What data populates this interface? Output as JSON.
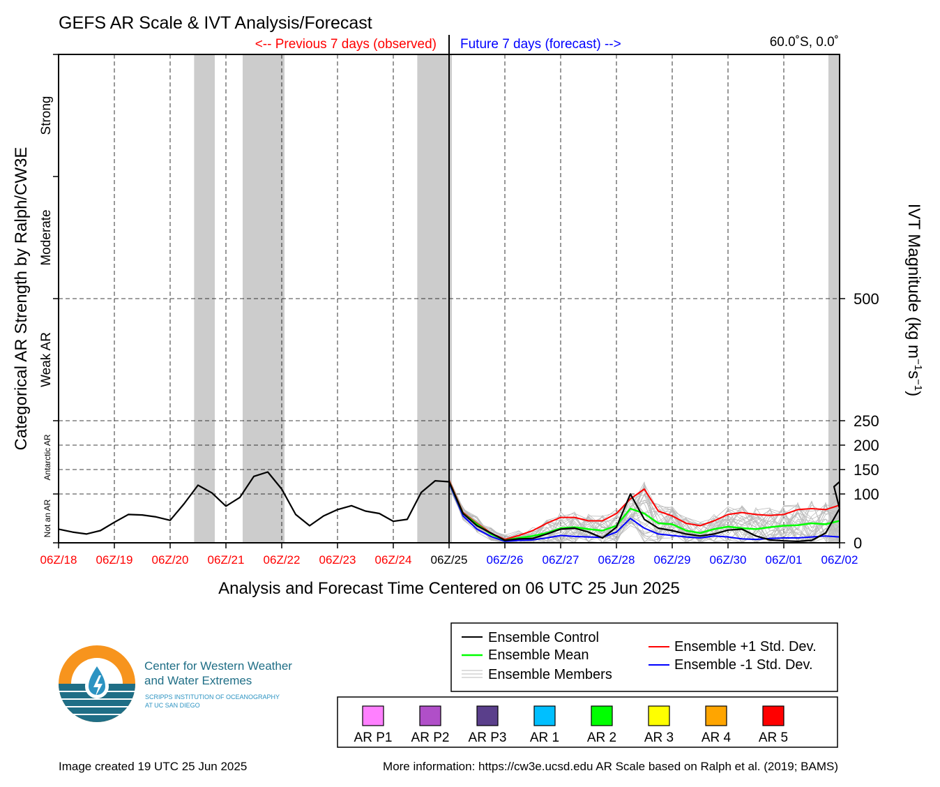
{
  "title": "GEFS AR Scale & IVT Analysis/Forecast",
  "header": {
    "previous_label": "<-- Previous 7 days (observed)",
    "future_label": "Future 7 days (forecast) -->",
    "location": "60.0˚S, 0.0˚"
  },
  "colors": {
    "observed": "#ff0000",
    "forecast": "#0000ff",
    "control": "#000000",
    "mean": "#00ff00",
    "plus_std": "#ff0000",
    "minus_std": "#0000ff",
    "members": "#bbbbbb",
    "shade": "#cccccc",
    "logo_orange": "#f7941d",
    "logo_teal": "#1f6e86"
  },
  "chart_data": {
    "type": "line",
    "xlabel": "Analysis and Forecast Time Centered on 06 UTC 25 Jun 2025",
    "ylabel_left": "Categorical AR Strength by Ralph/CW3E",
    "ylabel_right": "IVT Magnitude (kg m",
    "ylabel_right_sup1": "−1",
    "ylabel_right_mid": "s",
    "ylabel_right_sup2": "−1",
    "ylabel_right_end": ")",
    "x_ticks": [
      {
        "label": "06Z/18",
        "day": 0,
        "group": "observed"
      },
      {
        "label": "06Z/19",
        "day": 1,
        "group": "observed"
      },
      {
        "label": "06Z/20",
        "day": 2,
        "group": "observed"
      },
      {
        "label": "06Z/21",
        "day": 3,
        "group": "observed"
      },
      {
        "label": "06Z/22",
        "day": 4,
        "group": "observed"
      },
      {
        "label": "06Z/23",
        "day": 5,
        "group": "observed"
      },
      {
        "label": "06Z/24",
        "day": 6,
        "group": "observed"
      },
      {
        "label": "06Z/25",
        "day": 7,
        "group": "center"
      },
      {
        "label": "06Z/26",
        "day": 8,
        "group": "forecast"
      },
      {
        "label": "06Z/27",
        "day": 9,
        "group": "forecast"
      },
      {
        "label": "06Z/28",
        "day": 10,
        "group": "forecast"
      },
      {
        "label": "06Z/29",
        "day": 11,
        "group": "forecast"
      },
      {
        "label": "06Z/30",
        "day": 12,
        "group": "forecast"
      },
      {
        "label": "06Z/01",
        "day": 13,
        "group": "forecast"
      },
      {
        "label": "06Z/02",
        "day": 14,
        "group": "forecast"
      }
    ],
    "y_ticks": [
      0,
      100,
      150,
      200,
      250,
      500
    ],
    "y_ticks_labels": [
      "0",
      "100",
      "150",
      "200",
      "250",
      "500"
    ],
    "ylim": [
      0,
      1000
    ],
    "categories": [
      {
        "label": "Not an AR",
        "from": 0,
        "to": 100,
        "small": true
      },
      {
        "label": "Antarctic AR",
        "from": 100,
        "to": 250,
        "small": true
      },
      {
        "label": "Weak AR",
        "from": 250,
        "to": 500,
        "small": false
      },
      {
        "label": "Moderate",
        "from": 500,
        "to": 750,
        "small": false
      },
      {
        "label": "Strong",
        "from": 750,
        "to": 1000,
        "small": false
      }
    ],
    "ar_shading_days": [
      [
        2.43,
        2.8
      ],
      [
        3.3,
        4.05
      ],
      [
        6.43,
        7.05
      ],
      [
        13.8,
        14.0
      ]
    ],
    "series": [
      {
        "name": "Ensemble Control",
        "x": [
          0,
          0.25,
          0.5,
          0.75,
          1,
          1.25,
          1.5,
          1.75,
          2,
          2.25,
          2.5,
          2.75,
          3,
          3.25,
          3.5,
          3.75,
          4,
          4.25,
          4.5,
          4.75,
          5,
          5.25,
          5.5,
          5.75,
          6,
          6.25,
          6.5,
          6.75,
          7,
          7.25,
          7.5,
          7.75,
          8,
          8.25,
          8.5,
          8.75,
          9,
          9.25,
          9.5,
          9.75,
          10,
          10.25,
          10.5,
          10.75,
          11,
          11.25,
          11.5,
          11.75,
          12,
          12.25,
          12.5,
          12.75,
          13,
          13.25,
          13.5,
          13.75,
          14
        ],
        "y": [
          28,
          22,
          18,
          25,
          42,
          58,
          57,
          53,
          46,
          80,
          118,
          102,
          75,
          93,
          136,
          145,
          110,
          58,
          35,
          55,
          68,
          76,
          65,
          60,
          44,
          48,
          103,
          127,
          125,
          60,
          35,
          20,
          5,
          8,
          9,
          18,
          28,
          30,
          22,
          10,
          32,
          100,
          48,
          30,
          25,
          18,
          14,
          18,
          26,
          28,
          14,
          6,
          4,
          3,
          5,
          20,
          70
        ],
        "y_tail": [
          [
            13.9,
            115
          ],
          [
            14.0,
            125
          ]
        ]
      },
      {
        "name": "Ensemble Mean",
        "x": [
          7,
          7.25,
          7.5,
          7.75,
          8,
          8.25,
          8.5,
          8.75,
          9,
          9.25,
          9.5,
          9.75,
          10,
          10.25,
          10.5,
          10.75,
          11,
          11.25,
          11.5,
          11.75,
          12,
          12.25,
          12.5,
          12.75,
          13,
          13.25,
          13.5,
          13.75,
          14
        ],
        "y": [
          125,
          60,
          38,
          18,
          5,
          10,
          14,
          20,
          30,
          32,
          28,
          25,
          35,
          70,
          60,
          40,
          38,
          25,
          20,
          28,
          33,
          30,
          28,
          32,
          35,
          36,
          40,
          38,
          45
        ]
      },
      {
        "name": "Ensemble +1 Std. Dev.",
        "x": [
          7,
          7.25,
          7.5,
          7.75,
          8,
          8.25,
          8.5,
          8.75,
          9,
          9.25,
          9.5,
          9.75,
          10,
          10.25,
          10.5,
          10.75,
          11,
          11.25,
          11.5,
          11.75,
          12,
          12.25,
          12.5,
          12.75,
          13,
          13.25,
          13.5,
          13.75,
          14
        ],
        "y": [
          128,
          62,
          40,
          20,
          7,
          15,
          25,
          40,
          52,
          52,
          45,
          45,
          60,
          90,
          110,
          65,
          55,
          40,
          35,
          45,
          58,
          62,
          58,
          56,
          58,
          68,
          70,
          68,
          77
        ]
      },
      {
        "name": "Ensemble -1 Std. Dev.",
        "x": [
          7,
          7.25,
          7.5,
          7.75,
          8,
          8.25,
          8.5,
          8.75,
          9,
          9.25,
          9.5,
          9.75,
          10,
          10.25,
          10.5,
          10.75,
          11,
          11.25,
          11.5,
          11.75,
          12,
          12.25,
          12.5,
          12.75,
          13,
          13.25,
          13.5,
          13.75,
          14
        ],
        "y": [
          122,
          55,
          28,
          13,
          3,
          5,
          6,
          10,
          15,
          13,
          12,
          11,
          22,
          50,
          30,
          18,
          15,
          12,
          10,
          14,
          12,
          8,
          7,
          9,
          10,
          10,
          12,
          14,
          12
        ]
      }
    ]
  },
  "legend": {
    "control": "Ensemble Control",
    "mean": "Ensemble Mean",
    "members": "Ensemble Members",
    "plus": "Ensemble +1 Std. Dev.",
    "minus": "Ensemble -1 Std. Dev."
  },
  "ar_scale": [
    {
      "label": "AR P1",
      "color": "#ff80ff"
    },
    {
      "label": "AR P2",
      "color": "#b04fc8"
    },
    {
      "label": "AR P3",
      "color": "#5a3f8b"
    },
    {
      "label": "AR 1",
      "color": "#00bfff"
    },
    {
      "label": "AR 2",
      "color": "#00ff00"
    },
    {
      "label": "AR 3",
      "color": "#ffff00"
    },
    {
      "label": "AR 4",
      "color": "#ffa500"
    },
    {
      "label": "AR 5",
      "color": "#ff0000"
    }
  ],
  "logo": {
    "line1": "Center for Western Weather",
    "line2": "and Water Extremes",
    "sub1": "SCRIPPS INSTITUTION OF OCEANOGRAPHY",
    "sub2": "AT UC SAN DIEGO"
  },
  "footer": {
    "created": "Image created 19 UTC 25 Jun 2025",
    "info": "More information: https://cw3e.ucsd.edu AR Scale based on Ralph et al. (2019; BAMS)"
  }
}
